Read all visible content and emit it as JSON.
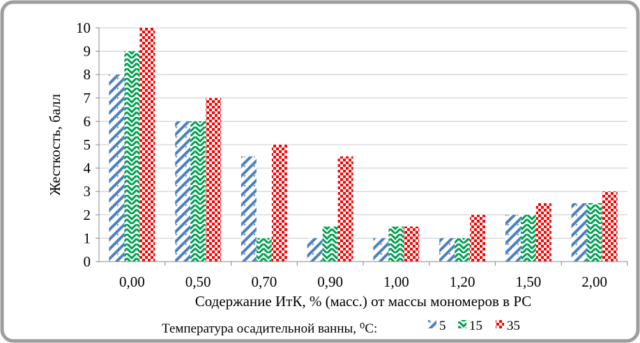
{
  "chart_data": {
    "type": "bar",
    "categories": [
      "0,00",
      "0,50",
      "0,70",
      "0,90",
      "1,00",
      "1,20",
      "1,50",
      "2,00"
    ],
    "series": [
      {
        "name": "5",
        "values": [
          8,
          6,
          4.5,
          1,
          1,
          1,
          2,
          2.5
        ],
        "color": "#4f81bd",
        "pattern": "diagonal-stripes"
      },
      {
        "name": "15",
        "values": [
          9,
          6,
          1,
          1.5,
          1.5,
          1,
          2,
          2.5
        ],
        "color": "#00a050",
        "pattern": "zigzag-stripes"
      },
      {
        "name": "35",
        "values": [
          10,
          7,
          5,
          4.5,
          1.5,
          2,
          2.5,
          3
        ],
        "color": "#ff0000",
        "pattern": "checkerboard"
      }
    ],
    "ylim": [
      0,
      10
    ],
    "yticks": [
      0,
      1,
      2,
      3,
      4,
      5,
      6,
      7,
      8,
      9,
      10
    ],
    "ylabel": "Жесткость, балл",
    "xlabel": "Содержание ИтК, % (масс.) от массы мономеров в РС",
    "legend_title": "Температура осадительной ванны, ⁰С:",
    "legend_position": "bottom",
    "grid": "horizontal"
  }
}
